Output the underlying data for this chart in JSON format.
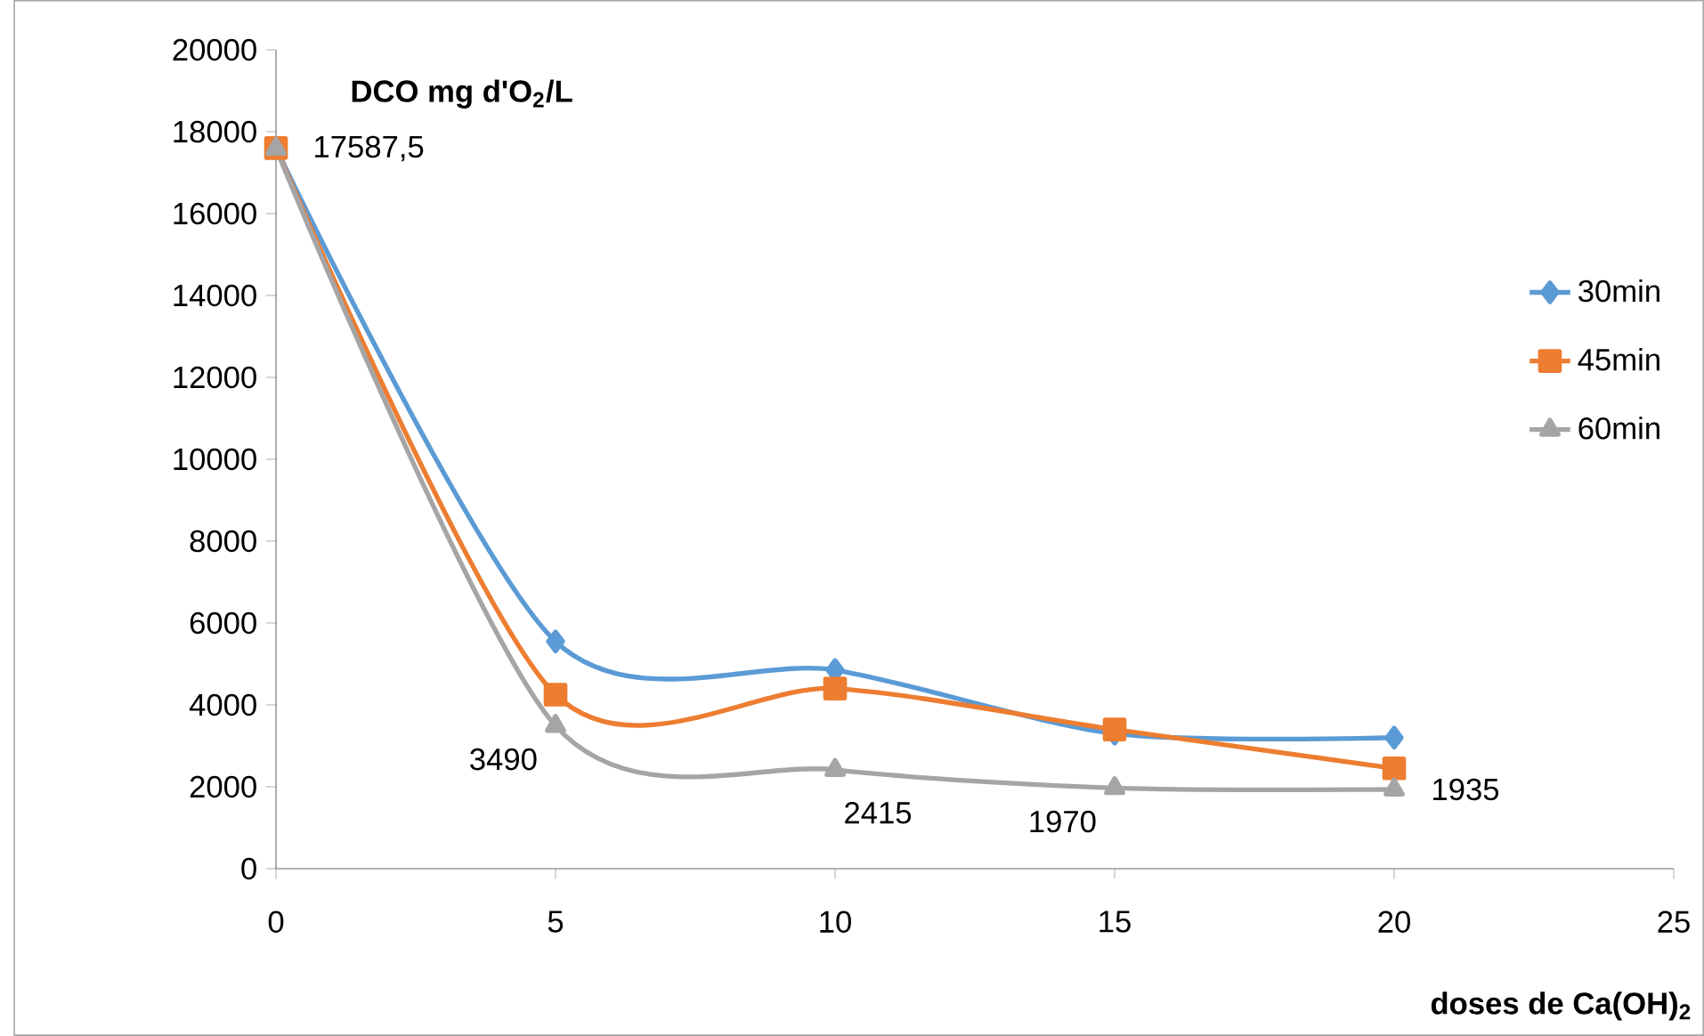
{
  "chart_data": {
    "type": "line",
    "xlabel": "doses de Ca(OH)$_{2}$",
    "ylabel": "DCO mg d'O$_{2}$/L",
    "x": [
      0,
      5,
      10,
      15,
      20
    ],
    "series": [
      {
        "name": "30min",
        "color": "#5b9bd5",
        "marker": "diamond",
        "values": [
          17600,
          5550,
          4850,
          3300,
          3200
        ]
      },
      {
        "name": "45min",
        "color": "#ed7d31",
        "marker": "square",
        "values": [
          17600,
          4250,
          4400,
          3400,
          2450
        ]
      },
      {
        "name": "60min",
        "color": "#a5a5a5",
        "marker": "triangle",
        "values": [
          17587.5,
          3490,
          2415,
          1970,
          1935
        ],
        "value_labels": [
          "17587,5",
          "3490",
          "2415",
          "1970",
          "1935"
        ]
      }
    ],
    "xlim": [
      0,
      25
    ],
    "xticks": [
      0,
      5,
      10,
      15,
      20,
      25
    ],
    "ylim": [
      0,
      20000
    ],
    "yticks": [
      0,
      2000,
      4000,
      6000,
      8000,
      10000,
      12000,
      14000,
      16000,
      18000,
      20000
    ],
    "grid": false,
    "legend": "right",
    "line_style": "solid"
  }
}
